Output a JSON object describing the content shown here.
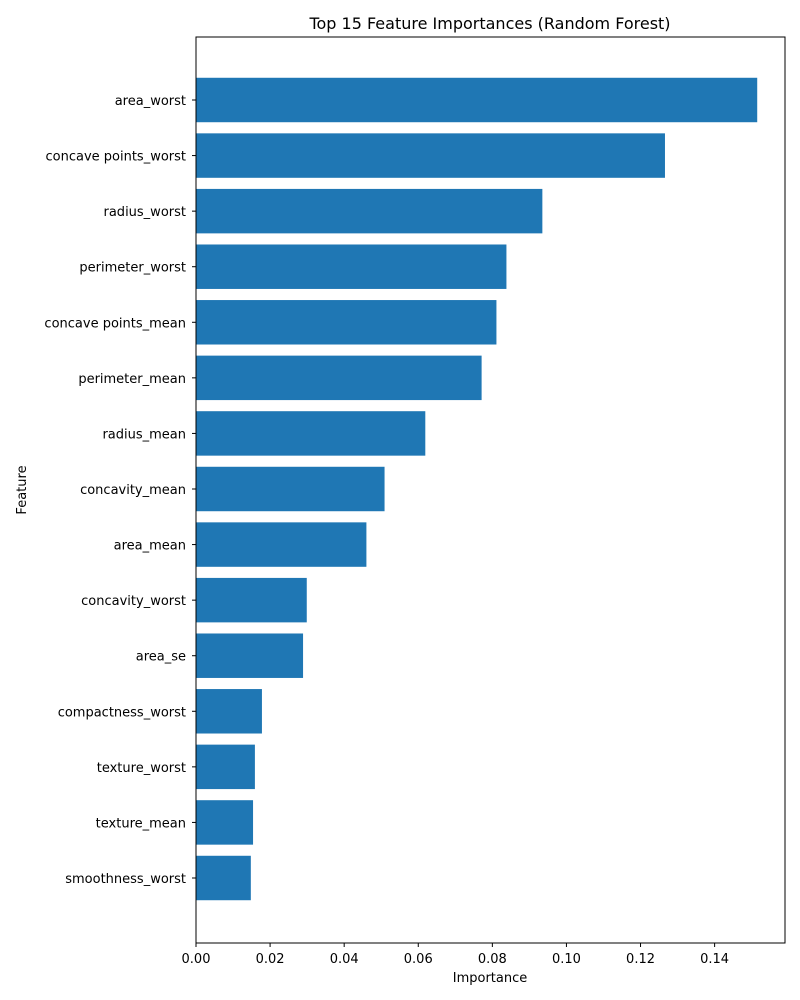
{
  "chart_data": {
    "type": "bar",
    "orientation": "horizontal",
    "title": "Top 15 Feature Importances (Random Forest)",
    "xlabel": "Importance",
    "ylabel": "Feature",
    "categories": [
      "area_worst",
      "concave points_worst",
      "radius_worst",
      "perimeter_worst",
      "concave points_mean",
      "perimeter_mean",
      "radius_mean",
      "concavity_mean",
      "area_mean",
      "concavity_worst",
      "area_se",
      "compactness_worst",
      "texture_worst",
      "texture_mean",
      "smoothness_worst"
    ],
    "values": [
      0.1515,
      0.1266,
      0.0935,
      0.0838,
      0.0811,
      0.0771,
      0.0619,
      0.0509,
      0.046,
      0.0299,
      0.0289,
      0.0178,
      0.0159,
      0.0154,
      0.0148
    ],
    "xlim": [
      0,
      0.159
    ],
    "xticks": [
      0.0,
      0.02,
      0.04,
      0.06,
      0.08,
      0.1,
      0.12,
      0.14
    ],
    "xtick_labels": [
      "0.00",
      "0.02",
      "0.04",
      "0.06",
      "0.08",
      "0.10",
      "0.12",
      "0.14"
    ],
    "bar_color": "#1f77b4",
    "grid": false,
    "legend": "none"
  }
}
